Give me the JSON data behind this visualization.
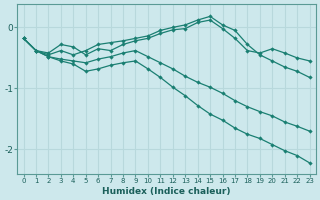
{
  "xlabel": "Humidex (Indice chaleur)",
  "background_color": "#cde8ec",
  "grid_color": "#b8d8dc",
  "line_color": "#1a7f72",
  "x_values": [
    0,
    1,
    2,
    3,
    4,
    5,
    6,
    7,
    8,
    9,
    10,
    11,
    12,
    13,
    14,
    15,
    16,
    17,
    18,
    19,
    20,
    21,
    22,
    23
  ],
  "curve1": [
    -0.18,
    -0.38,
    -0.42,
    -0.28,
    -0.32,
    -0.45,
    -0.35,
    -0.38,
    -0.28,
    -0.22,
    -0.18,
    -0.1,
    -0.04,
    -0.02,
    0.08,
    0.12,
    -0.02,
    -0.18,
    -0.38,
    -0.42,
    -0.35,
    -0.42,
    -0.5,
    -0.55
  ],
  "curve2": [
    -0.18,
    -0.38,
    -0.45,
    -0.38,
    -0.45,
    -0.38,
    -0.28,
    -0.25,
    -0.22,
    -0.18,
    -0.14,
    -0.05,
    0.0,
    0.04,
    0.12,
    0.18,
    0.04,
    -0.05,
    -0.28,
    -0.45,
    -0.55,
    -0.65,
    -0.72,
    -0.82
  ],
  "curve3": [
    -0.18,
    -0.38,
    -0.48,
    -0.52,
    -0.55,
    -0.58,
    -0.52,
    -0.48,
    -0.42,
    -0.38,
    -0.48,
    -0.58,
    -0.68,
    -0.8,
    -0.9,
    -0.98,
    -1.08,
    -1.2,
    -1.3,
    -1.38,
    -1.45,
    -1.55,
    -1.62,
    -1.7
  ],
  "curve4": [
    -0.18,
    -0.38,
    -0.48,
    -0.55,
    -0.6,
    -0.72,
    -0.68,
    -0.62,
    -0.58,
    -0.55,
    -0.68,
    -0.82,
    -0.98,
    -1.12,
    -1.28,
    -1.42,
    -1.52,
    -1.65,
    -1.75,
    -1.82,
    -1.92,
    -2.02,
    -2.1,
    -2.22
  ],
  "ylim": [
    -2.4,
    0.38
  ],
  "xlim": [
    -0.5,
    23.5
  ],
  "yticks": [
    0,
    -1,
    -2
  ],
  "xticks": [
    0,
    1,
    2,
    3,
    4,
    5,
    6,
    7,
    8,
    9,
    10,
    11,
    12,
    13,
    14,
    15,
    16,
    17,
    18,
    19,
    20,
    21,
    22,
    23
  ]
}
